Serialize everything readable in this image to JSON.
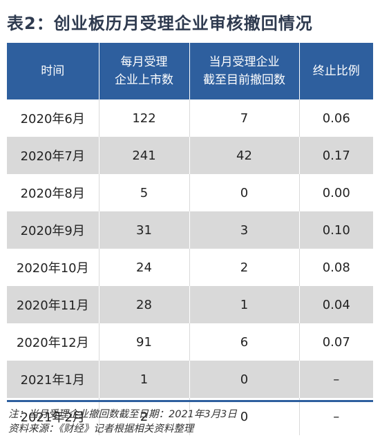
{
  "title": "表2：创业板历月受理企业审核撤回情况",
  "table": {
    "headers": [
      [
        "时间"
      ],
      [
        "每月受理",
        "企业上市数"
      ],
      [
        "当月受理企业",
        "截至目前撤回数"
      ],
      [
        "终止比例"
      ]
    ],
    "rows": [
      {
        "month": "2020年6月",
        "listed": "122",
        "withdrawn": "7",
        "ratio": "0.06"
      },
      {
        "month": "2020年7月",
        "listed": "241",
        "withdrawn": "42",
        "ratio": "0.17"
      },
      {
        "month": "2020年8月",
        "listed": "5",
        "withdrawn": "0",
        "ratio": "0.00"
      },
      {
        "month": "2020年9月",
        "listed": "31",
        "withdrawn": "3",
        "ratio": "0.10"
      },
      {
        "month": "2020年10月",
        "listed": "24",
        "withdrawn": "2",
        "ratio": "0.08"
      },
      {
        "month": "2020年11月",
        "listed": "28",
        "withdrawn": "1",
        "ratio": "0.04"
      },
      {
        "month": "2020年12月",
        "listed": "91",
        "withdrawn": "6",
        "ratio": "0.07"
      },
      {
        "month": "2021年1月",
        "listed": "1",
        "withdrawn": "0",
        "ratio": "–"
      },
      {
        "month": "2021年2月",
        "listed": "2",
        "withdrawn": "0",
        "ratio": "–"
      }
    ]
  },
  "notes": {
    "note": "注：当月受理企业撤回数截至日期：2021年3月3日",
    "source": "资料来源：《财经》记者根据相关资料整理"
  },
  "colors": {
    "header_bg": "#2e5f9e",
    "title": "#2e3a4f",
    "row_shade": "#d9d9d9"
  }
}
